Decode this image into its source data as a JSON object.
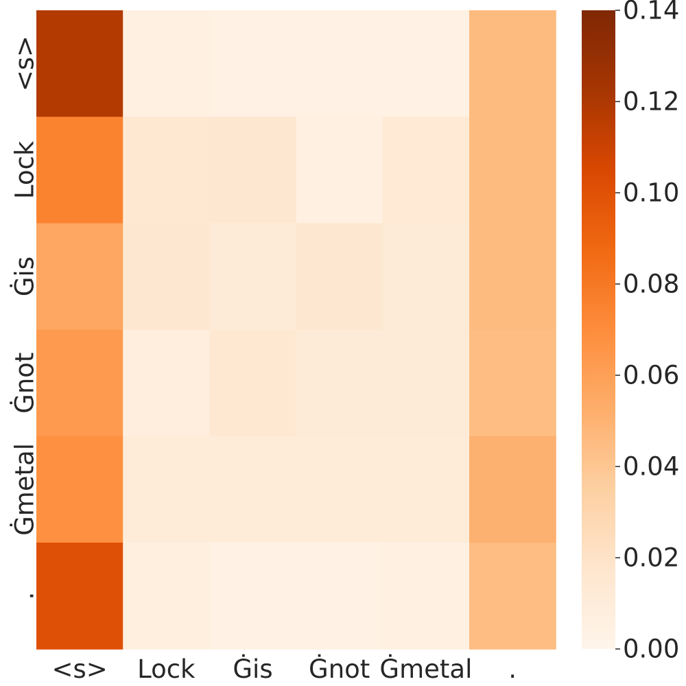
{
  "chart_data": {
    "type": "heatmap",
    "title": "",
    "xlabel": "",
    "ylabel": "",
    "x_categories": [
      "<s>",
      "Lock",
      "Ġis",
      "Ġnot",
      "Ġmetal",
      "."
    ],
    "y_categories": [
      "<s>",
      "Lock",
      "Ġis",
      "Ġnot",
      "Ġmetal",
      "."
    ],
    "values": [
      [
        0.118,
        0.006,
        0.005,
        0.005,
        0.005,
        0.046
      ],
      [
        0.075,
        0.015,
        0.016,
        0.006,
        0.013,
        0.046
      ],
      [
        0.056,
        0.016,
        0.012,
        0.016,
        0.012,
        0.046
      ],
      [
        0.063,
        0.008,
        0.015,
        0.012,
        0.012,
        0.045
      ],
      [
        0.068,
        0.011,
        0.011,
        0.011,
        0.011,
        0.051
      ],
      [
        0.101,
        0.007,
        0.005,
        0.005,
        0.006,
        0.045
      ]
    ],
    "colorbar": {
      "range": [
        0.0,
        0.14
      ],
      "ticks": [
        "0.00",
        "0.02",
        "0.04",
        "0.06",
        "0.08",
        "0.10",
        "0.12",
        "0.14"
      ],
      "colormap": "Oranges",
      "stops": [
        "#fff5eb",
        "#fee6ce",
        "#fdd0a2",
        "#fdae6b",
        "#fd8d3c",
        "#f16913",
        "#d94801",
        "#a63603",
        "#7f2704"
      ]
    }
  }
}
